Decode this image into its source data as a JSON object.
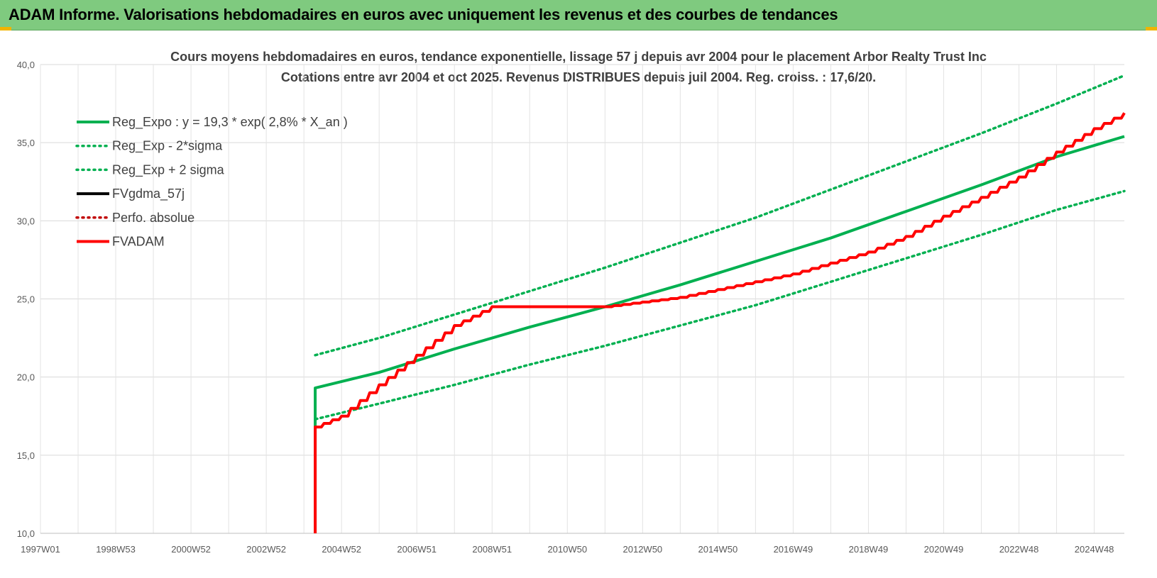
{
  "banner": {
    "title": "ADAM Informe. Valorisations hebdomadaires en euros avec uniquement les revenus et des courbes de tendances"
  },
  "chart_data": {
    "type": "line",
    "title": "Cours moyens hebdomadaires en euros, tendance exponentielle, lissage 57 j depuis avr 2004 pour le placement Arbor Realty Trust Inc",
    "subtitle": "Cotations entre avr 2004 et oct 2025. Revenus DISTRIBUES depuis juil 2004. Reg. croiss. : 17,6/20.",
    "xlabel": "",
    "ylabel": "",
    "x_range": [
      1997.0,
      2025.8
    ],
    "ylim": [
      10,
      40
    ],
    "y_ticks": [
      "10,0",
      "15,0",
      "20,0",
      "25,0",
      "30,0",
      "35,0",
      "40,0"
    ],
    "x_ticks": [
      {
        "label": "1997W01",
        "x": 1997.0
      },
      {
        "label": "1998W53",
        "x": 1999.0
      },
      {
        "label": "2000W52",
        "x": 2001.0
      },
      {
        "label": "2002W52",
        "x": 2003.0
      },
      {
        "label": "2004W52",
        "x": 2005.0
      },
      {
        "label": "2006W51",
        "x": 2007.0
      },
      {
        "label": "2008W51",
        "x": 2009.0
      },
      {
        "label": "2010W50",
        "x": 2011.0
      },
      {
        "label": "2012W50",
        "x": 2013.0
      },
      {
        "label": "2014W50",
        "x": 2015.0
      },
      {
        "label": "2016W49",
        "x": 2017.0
      },
      {
        "label": "2018W49",
        "x": 2019.0
      },
      {
        "label": "2020W49",
        "x": 2021.0
      },
      {
        "label": "2022W48",
        "x": 2023.0
      },
      {
        "label": "2024W48",
        "x": 2025.0
      }
    ],
    "grid": true,
    "legend_position": "top-left",
    "series": [
      {
        "name": "Reg_Expo : y = 19,3 * exp( 2,8% *  X_an )",
        "color": "#00b050",
        "style": "solid",
        "points": [
          [
            2004.3,
            10.0
          ],
          [
            2004.3,
            19.3
          ],
          [
            2006.0,
            20.3
          ],
          [
            2008.0,
            21.8
          ],
          [
            2010.0,
            23.2
          ],
          [
            2012.0,
            24.5
          ],
          [
            2014.0,
            25.9
          ],
          [
            2016.0,
            27.4
          ],
          [
            2018.0,
            28.9
          ],
          [
            2020.0,
            30.6
          ],
          [
            2022.0,
            32.3
          ],
          [
            2024.0,
            34.1
          ],
          [
            2025.8,
            35.4
          ]
        ]
      },
      {
        "name": "Reg_Exp - 2*sigma",
        "color": "#00b050",
        "style": "dotted",
        "points": [
          [
            2004.3,
            17.3
          ],
          [
            2006.0,
            18.3
          ],
          [
            2008.0,
            19.5
          ],
          [
            2010.0,
            20.8
          ],
          [
            2012.0,
            22.0
          ],
          [
            2014.0,
            23.3
          ],
          [
            2016.0,
            24.6
          ],
          [
            2018.0,
            26.1
          ],
          [
            2020.0,
            27.6
          ],
          [
            2022.0,
            29.1
          ],
          [
            2024.0,
            30.7
          ],
          [
            2025.8,
            31.9
          ]
        ]
      },
      {
        "name": "Reg_Exp + 2 sigma",
        "color": "#00b050",
        "style": "dotted",
        "points": [
          [
            2004.3,
            21.4
          ],
          [
            2006.0,
            22.5
          ],
          [
            2008.0,
            24.0
          ],
          [
            2010.0,
            25.5
          ],
          [
            2012.0,
            27.0
          ],
          [
            2014.0,
            28.6
          ],
          [
            2016.0,
            30.2
          ],
          [
            2018.0,
            32.0
          ],
          [
            2020.0,
            33.8
          ],
          [
            2022.0,
            35.6
          ],
          [
            2024.0,
            37.5
          ],
          [
            2025.8,
            39.3
          ]
        ]
      },
      {
        "name": "FVgdma_57j",
        "color": "#000000",
        "style": "solid",
        "points": []
      },
      {
        "name": "Perfo. absolue",
        "color": "#c00000",
        "style": "dotted",
        "points": []
      },
      {
        "name": "FVADAM",
        "color": "#ff0000",
        "style": "solid",
        "points": [
          [
            2004.3,
            10.0
          ],
          [
            2004.3,
            16.8
          ],
          [
            2005.0,
            17.5
          ],
          [
            2006.0,
            19.5
          ],
          [
            2007.0,
            21.4
          ],
          [
            2008.0,
            23.3
          ],
          [
            2009.0,
            24.5
          ],
          [
            2011.0,
            24.5
          ],
          [
            2012.0,
            24.5
          ],
          [
            2013.0,
            24.8
          ],
          [
            2014.0,
            25.1
          ],
          [
            2015.0,
            25.6
          ],
          [
            2016.0,
            26.1
          ],
          [
            2017.0,
            26.6
          ],
          [
            2018.0,
            27.3
          ],
          [
            2019.0,
            28.0
          ],
          [
            2020.0,
            29.0
          ],
          [
            2021.0,
            30.3
          ],
          [
            2022.0,
            31.5
          ],
          [
            2023.0,
            32.8
          ],
          [
            2024.0,
            34.4
          ],
          [
            2025.0,
            35.9
          ],
          [
            2025.8,
            36.9
          ]
        ]
      }
    ]
  }
}
